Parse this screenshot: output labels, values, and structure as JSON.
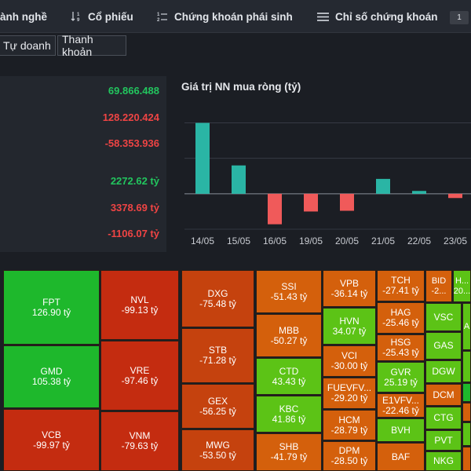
{
  "colors": {
    "positive": "#22c55e",
    "negative": "#ef4444",
    "bar_up": "#2ab5a5",
    "bar_down": "#f05a5a",
    "tile_green_bright": "#1eb82c",
    "tile_green": "#5cc316",
    "tile_red": "#c42c10",
    "tile_orange_dark": "#c5420e",
    "tile_orange": "#d4600c"
  },
  "nav": {
    "items": [
      {
        "label": "ành nghề",
        "icon": ""
      },
      {
        "label": "Cổ phiếu",
        "icon": "sort-numeric-icon"
      },
      {
        "label": "Chứng khoán phái sinh",
        "icon": "list-numbered-icon"
      },
      {
        "label": "Chỉ số chứng khoán",
        "icon": "menu-lines-icon"
      }
    ],
    "page_badge": "1"
  },
  "subtabs": [
    {
      "label": "Tự doanh"
    },
    {
      "label": "Thanh khoản"
    }
  ],
  "stats": [
    {
      "value": "69.866.488",
      "tone": "positive"
    },
    {
      "value": "128.220.424",
      "tone": "negative"
    },
    {
      "value": "-58.353.936",
      "tone": "negative"
    },
    {
      "value": "2272.62 tỷ",
      "tone": "positive"
    },
    {
      "value": "3378.69 tỷ",
      "tone": "negative"
    },
    {
      "value": "-1106.07 tỷ",
      "tone": "negative"
    }
  ],
  "chart_data": {
    "type": "bar",
    "title": "Giá trị NN mua ròng (tỷ)",
    "categories": [
      "14/05",
      "15/05",
      "16/05",
      "19/05",
      "20/05",
      "21/05",
      "22/05",
      "23/05"
    ],
    "values": [
      1000,
      400,
      -430,
      -250,
      -240,
      210,
      40,
      -60
    ],
    "ylim": [
      -500,
      1150
    ],
    "grid": true,
    "xlabel": "",
    "ylabel": ""
  },
  "treemap": [
    {
      "symbol": "FPT",
      "value": "126.90 tỷ",
      "color": "tile_green_bright"
    },
    {
      "symbol": "GMD",
      "value": "105.38 tỷ",
      "color": "tile_green_bright"
    },
    {
      "symbol": "VCB",
      "value": "-99.97 tỷ",
      "color": "tile_red"
    },
    {
      "symbol": "NVL",
      "value": "-99.13 tỷ",
      "color": "tile_red"
    },
    {
      "symbol": "VRE",
      "value": "-97.46 tỷ",
      "color": "tile_red"
    },
    {
      "symbol": "VNM",
      "value": "-79.63 tỷ",
      "color": "tile_red"
    },
    {
      "symbol": "DXG",
      "value": "-75.48 tỷ",
      "color": "tile_orange_dark"
    },
    {
      "symbol": "STB",
      "value": "-71.28 tỷ",
      "color": "tile_orange_dark"
    },
    {
      "symbol": "GEX",
      "value": "-56.25 tỷ",
      "color": "tile_orange_dark"
    },
    {
      "symbol": "MWG",
      "value": "-53.50 tỷ",
      "color": "tile_orange_dark"
    },
    {
      "symbol": "SSI",
      "value": "-51.43 tỷ",
      "color": "tile_orange"
    },
    {
      "symbol": "MBB",
      "value": "-50.27 tỷ",
      "color": "tile_orange"
    },
    {
      "symbol": "CTD",
      "value": "43.43 tỷ",
      "color": "tile_green"
    },
    {
      "symbol": "KBC",
      "value": "41.86 tỷ",
      "color": "tile_green"
    },
    {
      "symbol": "SHB",
      "value": "-41.79 tỷ",
      "color": "tile_orange"
    },
    {
      "symbol": "VPB",
      "value": "-36.14 tỷ",
      "color": "tile_orange"
    },
    {
      "symbol": "HVN",
      "value": "34.07 tỷ",
      "color": "tile_green"
    },
    {
      "symbol": "VCI",
      "value": "-30.00 tỷ",
      "color": "tile_orange"
    },
    {
      "symbol": "FUEVFV...",
      "value": "-29.20 tỷ",
      "color": "tile_orange"
    },
    {
      "symbol": "HCM",
      "value": "-28.79 tỷ",
      "color": "tile_orange"
    },
    {
      "symbol": "DPM",
      "value": "-28.50 tỷ",
      "color": "tile_orange"
    },
    {
      "symbol": "TCH",
      "value": "-27.41 tỷ",
      "color": "tile_orange"
    },
    {
      "symbol": "HAG",
      "value": "-25.46 tỷ",
      "color": "tile_orange"
    },
    {
      "symbol": "HSG",
      "value": "-25.43 tỷ",
      "color": "tile_orange"
    },
    {
      "symbol": "GVR",
      "value": "25.19 tỷ",
      "color": "tile_green"
    },
    {
      "symbol": "E1VFV...",
      "value": "-22.46 tỷ",
      "color": "tile_orange"
    },
    {
      "symbol": "BVH",
      "value": "",
      "color": "tile_green"
    },
    {
      "symbol": "BAF",
      "value": "",
      "color": "tile_orange"
    },
    {
      "symbol": "BID",
      "value": "-2...",
      "color": "tile_orange"
    },
    {
      "symbol": "H...",
      "value": "20...",
      "color": "tile_green"
    },
    {
      "symbol": "VSC",
      "value": "",
      "color": "tile_green"
    },
    {
      "symbol": "A",
      "value": "",
      "color": "tile_green"
    },
    {
      "symbol": "GAS",
      "value": "",
      "color": "tile_green"
    },
    {
      "symbol": "DGW",
      "value": "",
      "color": "tile_green"
    },
    {
      "symbol": "DCM",
      "value": "",
      "color": "tile_orange"
    },
    {
      "symbol": "CTG",
      "value": "",
      "color": "tile_green"
    },
    {
      "symbol": "PVT",
      "value": "",
      "color": "tile_green"
    },
    {
      "symbol": "NKG",
      "value": "",
      "color": "tile_green"
    },
    {
      "symbol": "",
      "value": "",
      "color": "tile_green"
    },
    {
      "symbol": "",
      "value": "",
      "color": "tile_green_bright"
    },
    {
      "symbol": "",
      "value": "",
      "color": "tile_orange"
    },
    {
      "symbol": "",
      "value": "",
      "color": "tile_green"
    },
    {
      "symbol": "",
      "value": "",
      "color": "tile_orange"
    }
  ]
}
